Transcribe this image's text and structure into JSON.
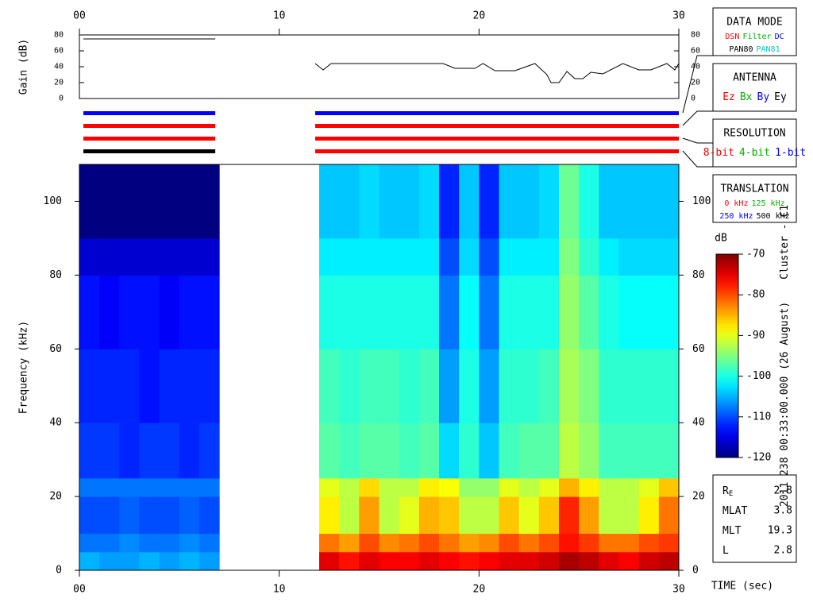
{
  "chart_data": [
    {
      "type": "line",
      "ylabel": "Gain (dB)",
      "color": "#000000",
      "xlim": [
        0,
        30
      ],
      "xticks": [
        {
          "value": 0,
          "label": "00"
        },
        10,
        20,
        30
      ],
      "ylim": [
        0,
        80
      ],
      "yticks": [
        0,
        20,
        40,
        60,
        80
      ],
      "x": [
        0.2,
        6.8,
        9,
        11.8,
        12.2,
        12.6,
        18.2,
        18.8,
        19.8,
        20.2,
        20.8,
        21.8,
        22.8,
        23.4,
        23.6,
        24.0,
        24.4,
        24.8,
        25.2,
        25.6,
        26.2,
        27.2,
        28.0,
        28.6,
        29.4,
        29.8,
        30
      ],
      "values": [
        75,
        75,
        null,
        44,
        36,
        44,
        44,
        38,
        38,
        44,
        35,
        35,
        44,
        30,
        20,
        20,
        34,
        25,
        25,
        33,
        31,
        44,
        36,
        36,
        44,
        36,
        44
      ]
    },
    {
      "type": "timeline",
      "xlim": [
        0,
        30
      ],
      "rows": [
        {
          "segments": [
            {
              "start": 0.2,
              "end": 6.8,
              "color": "#0000ff"
            },
            {
              "start": 11.8,
              "end": 30,
              "color": "#0000ff"
            }
          ]
        },
        {
          "segments": [
            {
              "start": 0.2,
              "end": 6.8,
              "color": "#ff0000"
            },
            {
              "start": 11.8,
              "end": 30,
              "color": "#ff0000"
            }
          ]
        },
        {
          "segments": [
            {
              "start": 0.2,
              "end": 6.8,
              "color": "#ff0000"
            },
            {
              "start": 11.8,
              "end": 30,
              "color": "#ff0000"
            }
          ]
        },
        {
          "segments": [
            {
              "start": 0.2,
              "end": 6.8,
              "color": "#000000"
            },
            {
              "start": 11.8,
              "end": 30,
              "color": "#ff0000"
            }
          ]
        }
      ]
    },
    {
      "type": "heatmap",
      "xlabel": "TIME (sec)",
      "ylabel": "Frequency (kHz)",
      "xlim": [
        0,
        30
      ],
      "xticks": [
        {
          "value": 0,
          "label": "00"
        },
        10,
        20,
        30
      ],
      "ylim": [
        0,
        110
      ],
      "yticks": [
        0,
        20,
        40,
        60,
        80,
        100
      ],
      "x_bins": [
        0,
        1,
        2,
        3,
        4,
        5,
        6,
        7,
        12,
        13,
        14,
        15,
        16,
        17,
        18,
        19,
        20,
        21,
        22,
        23,
        24,
        25,
        26,
        27,
        28,
        29,
        30
      ],
      "y_bins": [
        0,
        5,
        10,
        20,
        25,
        40,
        60,
        80,
        90,
        110
      ],
      "z": [
        [
          -105,
          -106,
          -106,
          -105,
          -106,
          -105,
          -106,
          null,
          -75,
          -77,
          -75,
          -76,
          -76,
          -75,
          -76,
          -77,
          -76,
          -75,
          -75,
          -74,
          -72,
          -73,
          -75,
          -76,
          -74,
          -73
        ],
        [
          -108,
          -108,
          -107,
          -108,
          -108,
          -107,
          -108,
          null,
          -82,
          -84,
          -80,
          -83,
          -82,
          -80,
          -82,
          -84,
          -83,
          -80,
          -82,
          -80,
          -77,
          -79,
          -82,
          -82,
          -80,
          -79
        ],
        [
          -110,
          -110,
          -109,
          -110,
          -110,
          -109,
          -110,
          null,
          -88,
          -92,
          -84,
          -92,
          -90,
          -85,
          -86,
          -92,
          -92,
          -86,
          -90,
          -86,
          -78,
          -84,
          -92,
          -92,
          -88,
          -82
        ],
        [
          -108,
          -108,
          -108,
          -108,
          -108,
          -108,
          -108,
          null,
          -90,
          -92,
          -87,
          -92,
          -92,
          -88,
          -89,
          -94,
          -94,
          -90,
          -92,
          -90,
          -85,
          -88,
          -92,
          -92,
          -90,
          -86
        ],
        [
          -111,
          -111,
          -112,
          -111,
          -111,
          -112,
          -111,
          null,
          -97,
          -98,
          -97,
          -97,
          -98,
          -97,
          -103,
          -99,
          -104,
          -98,
          -97,
          -97,
          -92,
          -94,
          -98,
          -98,
          -98,
          -98
        ],
        [
          -112,
          -112,
          -112,
          -113,
          -112,
          -112,
          -112,
          null,
          -98,
          -99,
          -98,
          -98,
          -99,
          -98,
          -106,
          -100,
          -106,
          -99,
          -99,
          -98,
          -93,
          -95,
          -99,
          -99,
          -99,
          -99
        ],
        [
          -113,
          -114,
          -113,
          -113,
          -114,
          -113,
          -113,
          null,
          -100,
          -100,
          -100,
          -100,
          -100,
          -100,
          -108,
          -101,
          -108,
          -100,
          -100,
          -100,
          -94,
          -97,
          -100,
          -101,
          -101,
          -101
        ],
        [
          -116,
          -116,
          -116,
          -116,
          -116,
          -116,
          -116,
          null,
          -102,
          -102,
          -102,
          -102,
          -102,
          -102,
          -110,
          -103,
          -110,
          -102,
          -102,
          -102,
          -95,
          -99,
          -102,
          -103,
          -103,
          -103
        ],
        [
          -120,
          -120,
          -120,
          -120,
          -120,
          -120,
          -120,
          null,
          -104,
          -104,
          -103,
          -104,
          -104,
          -103,
          -112,
          -104,
          -112,
          -104,
          -104,
          -103,
          -96,
          -100,
          -104,
          -104,
          -104,
          -104
        ]
      ],
      "colorbar": {
        "label": "dB",
        "lim": [
          -120,
          -70
        ],
        "ticks": [
          -70,
          -80,
          -90,
          -100,
          -110,
          -120
        ]
      }
    }
  ],
  "side_label": [
    "2011 238 00:33:00.000 (26 August)",
    "Cluster - C1"
  ],
  "legend_boxes": [
    {
      "title": "DATA MODE",
      "lines": [
        [
          {
            "text": "DSN",
            "color": "#ff0000"
          },
          {
            "text": "Filter",
            "color": "#00b000"
          },
          {
            "text": "DC",
            "color": "#0000ff"
          }
        ],
        [
          {
            "text": "PAN80",
            "color": "#000000"
          },
          {
            "text": "PAN81",
            "color": "#00c8c8"
          }
        ]
      ]
    },
    {
      "title": "ANTENNA",
      "lines": [
        [
          {
            "text": "Ez",
            "color": "#ff0000"
          },
          {
            "text": "Bx",
            "color": "#00b000"
          },
          {
            "text": "By",
            "color": "#0000ff"
          },
          {
            "text": "Ey",
            "color": "#000000"
          }
        ]
      ]
    },
    {
      "title": "RESOLUTION",
      "lines": [
        [
          {
            "text": "8-bit",
            "color": "#ff0000"
          },
          {
            "text": "4-bit",
            "color": "#00b000"
          },
          {
            "text": "1-bit",
            "color": "#0000ff"
          }
        ]
      ]
    },
    {
      "title": "TRANSLATION",
      "lines": [
        [
          {
            "text": "0 kHz",
            "color": "#ff0000"
          },
          {
            "text": "125 kHz",
            "color": "#00b000"
          }
        ],
        [
          {
            "text": "250 kHz",
            "color": "#0000ff"
          },
          {
            "text": "500 kHz",
            "color": "#000000"
          }
        ]
      ]
    }
  ],
  "info": [
    {
      "label": "R",
      "sub": "E",
      "value": 2.8
    },
    {
      "label": "MLAT",
      "value": 3.8
    },
    {
      "label": "MLT",
      "value": 19.3
    },
    {
      "label": "L",
      "value": 2.8
    }
  ]
}
